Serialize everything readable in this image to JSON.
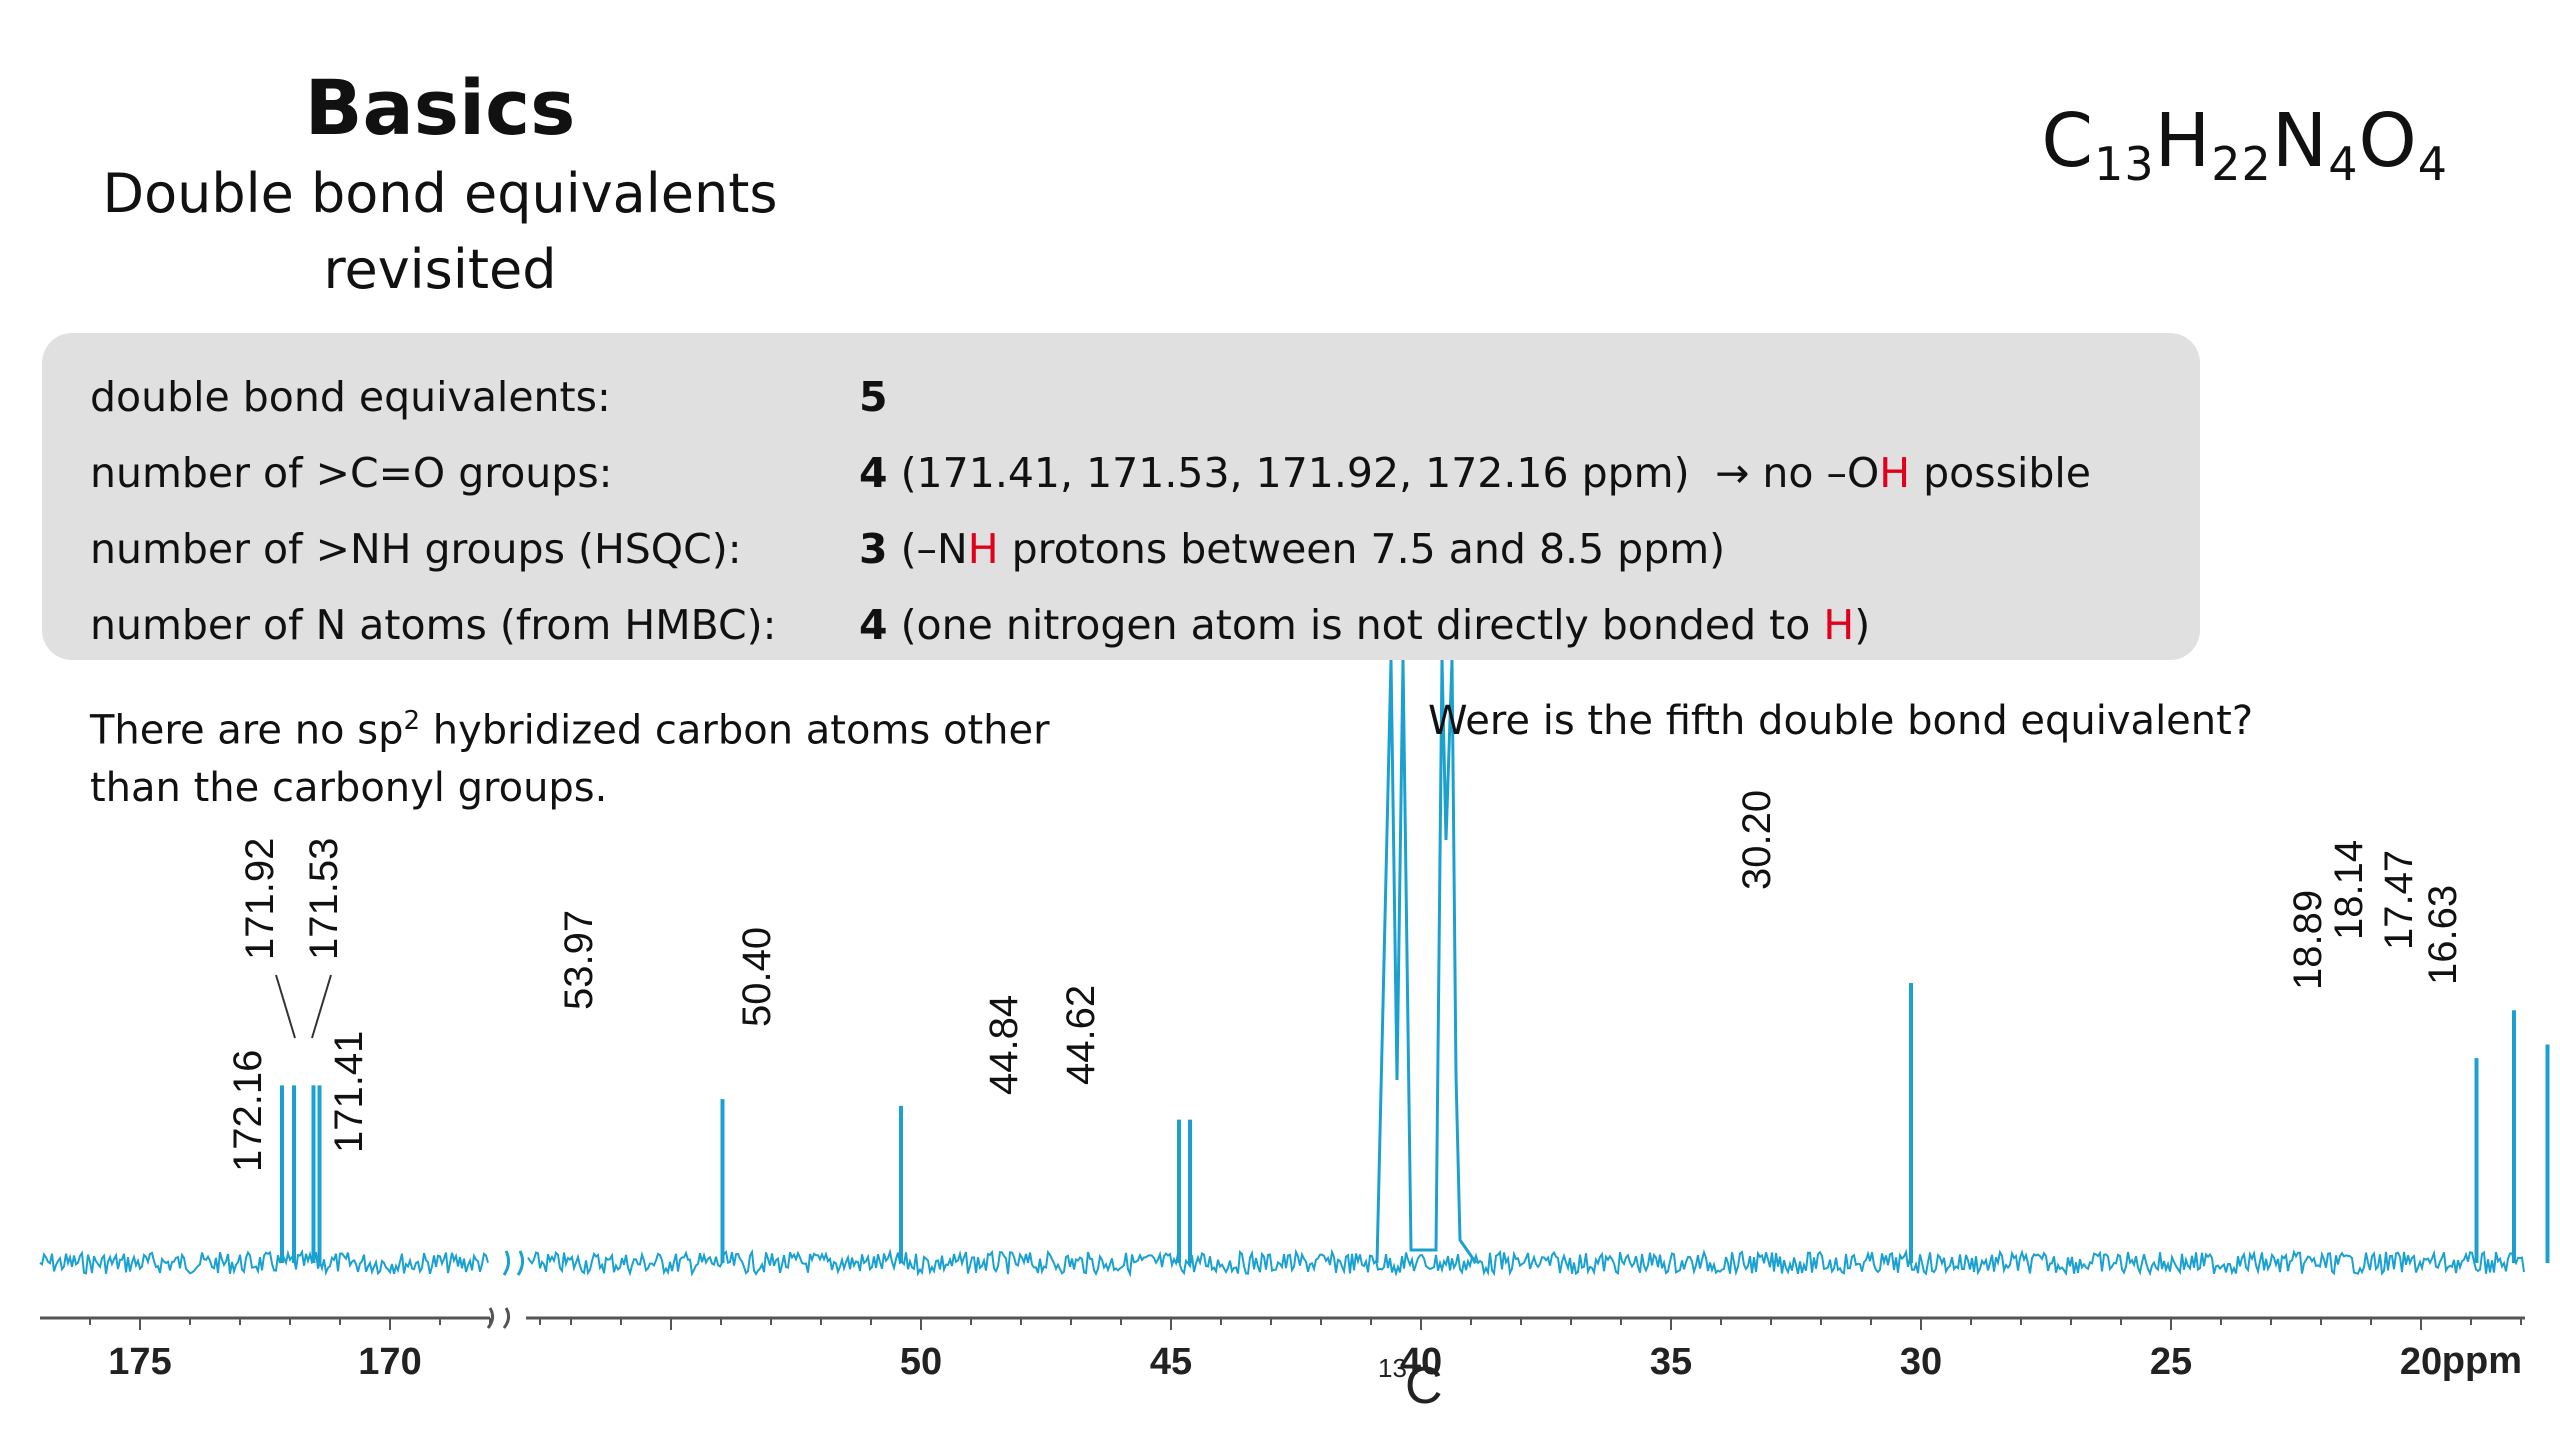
{
  "header": {
    "title": "Basics",
    "subtitle_line1": "Double bond equivalents",
    "subtitle_line2": "revisited",
    "formula": {
      "c": "C",
      "c_n": "13",
      "h": "H",
      "h_n": "22",
      "n": "N",
      "n_n": "4",
      "o": "O",
      "o_n": "4"
    }
  },
  "info_rows": [
    {
      "label": "double bond equivalents:",
      "value_bold": "5",
      "value_rest": ""
    },
    {
      "label": "number of >C=O groups:",
      "value_bold": "4",
      "value_rest": " (171.41, 171.53, 171.92, 172.16 ppm)",
      "arrow": "→ no –O",
      "arrow_red": "H",
      "arrow_tail": " possible"
    },
    {
      "label": "number of >NH groups (HSQC):",
      "value_bold": "3",
      "value_pre": " (–N",
      "value_red": "H",
      "value_post": " protons between 7.5 and 8.5 ppm)"
    },
    {
      "label": "number of N atoms (from HMBC):",
      "value_bold": "4",
      "value_pre": " (one nitrogen atom is not directly bonded to ",
      "value_red": "H",
      "value_post": ")"
    }
  ],
  "notes": {
    "left_line1": "There are no sp",
    "left_sup": "2",
    "left_line1_tail": " hybridized carbon atoms other",
    "left_line2": "than the carbonyl groups.",
    "right": "Were is the fifth double bond equivalent?"
  },
  "colors": {
    "spectrum": "#1ba1cf",
    "highlight": "#e0001b",
    "box": "#e0e0e0"
  },
  "chart_data": {
    "type": "line",
    "title": "",
    "xlabel_nucleus": "13",
    "xlabel_element": "C",
    "unit": "ppm",
    "x_axis_reversed": true,
    "axis_break": true,
    "segments": [
      {
        "xlim": [
          177,
          167
        ]
      },
      {
        "xlim": [
          58,
          15
        ]
      }
    ],
    "ticks_segment1": [
      175,
      170
    ],
    "ticks_segment2": [
      50,
      45,
      40,
      35,
      30,
      25,
      20
    ],
    "peaks": [
      {
        "ppm": 172.16,
        "label": "172.16",
        "height": 0.26
      },
      {
        "ppm": 171.92,
        "label": "171.92",
        "height": 0.26
      },
      {
        "ppm": 171.53,
        "label": "171.53",
        "height": 0.26
      },
      {
        "ppm": 171.41,
        "label": "171.41",
        "height": 0.26
      },
      {
        "ppm": 53.97,
        "label": "53.97",
        "height": 0.24
      },
      {
        "ppm": 50.4,
        "label": "50.40",
        "height": 0.23
      },
      {
        "ppm": 44.84,
        "label": "44.84",
        "height": 0.21
      },
      {
        "ppm": 44.62,
        "label": "44.62",
        "height": 0.21
      },
      {
        "ppm": 30.2,
        "label": "30.20",
        "height": 0.41
      },
      {
        "ppm": 18.89,
        "label": "18.89",
        "height": 0.3
      },
      {
        "ppm": 18.14,
        "label": "18.14",
        "height": 0.37
      },
      {
        "ppm": 17.47,
        "label": "17.47",
        "height": 0.32
      },
      {
        "ppm": 16.63,
        "label": "16.63",
        "height": 0.28
      }
    ],
    "solvent": {
      "ppm_range": [
        39.5,
        40.6
      ],
      "note": "truncated"
    },
    "grid": false,
    "legend": "none"
  }
}
